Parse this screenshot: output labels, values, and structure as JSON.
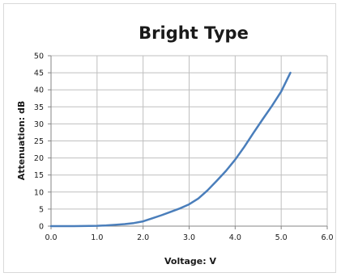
{
  "chart_data": {
    "type": "line",
    "title": "Bright Type",
    "xlabel": "Voltage: V",
    "ylabel": "Attenuation: dB",
    "xlim": [
      0,
      6
    ],
    "ylim": [
      0,
      50
    ],
    "x_ticks": [
      "0.0",
      "1.0",
      "2.0",
      "3.0",
      "4.0",
      "5.0",
      "6.0"
    ],
    "y_ticks": [
      "0",
      "5",
      "10",
      "15",
      "20",
      "25",
      "30",
      "35",
      "40",
      "45",
      "50"
    ],
    "grid": true,
    "legend": "none",
    "series": [
      {
        "color": "#4a7ebb",
        "x": [
          0.0,
          0.5,
          1.0,
          1.2,
          1.4,
          1.6,
          1.8,
          2.0,
          2.2,
          2.4,
          2.6,
          2.8,
          3.0,
          3.2,
          3.4,
          3.6,
          3.8,
          4.0,
          4.2,
          4.4,
          4.6,
          4.8,
          5.0,
          5.2
        ],
        "y": [
          0.0,
          0.0,
          0.1,
          0.2,
          0.4,
          0.6,
          0.9,
          1.4,
          2.3,
          3.2,
          4.2,
          5.2,
          6.4,
          8.1,
          10.5,
          13.3,
          16.2,
          19.5,
          23.3,
          27.4,
          31.4,
          35.3,
          39.5,
          45.0
        ]
      }
    ]
  }
}
